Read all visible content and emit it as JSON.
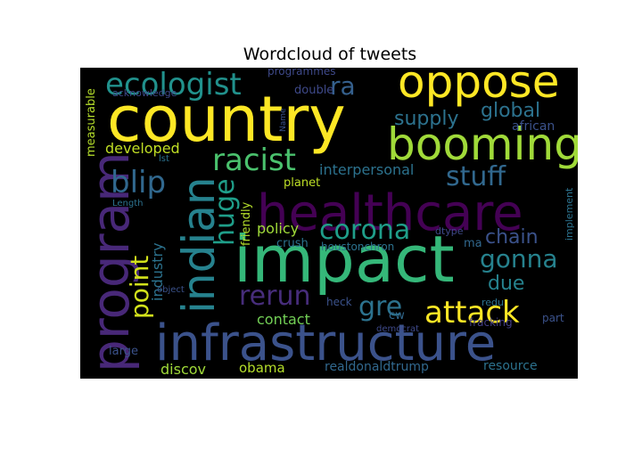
{
  "chart_data": {
    "type": "wordcloud",
    "title": "Wordcloud of tweets",
    "background": "#000000",
    "colormap": "viridis",
    "words": [
      {
        "text": "country",
        "color": "#fde725"
      },
      {
        "text": "impact",
        "color": "#35b779"
      },
      {
        "text": "infrastructure",
        "color": "#3b528b"
      },
      {
        "text": "healthcare",
        "color": "#440154"
      },
      {
        "text": "oppose",
        "color": "#fde725"
      },
      {
        "text": "booming",
        "color": "#a0da39"
      },
      {
        "text": "program",
        "color": "#482878"
      },
      {
        "text": "indian",
        "color": "#26828e"
      },
      {
        "text": "ecologist",
        "color": "#21918c"
      },
      {
        "text": "racist",
        "color": "#4ac16d"
      },
      {
        "text": "attack",
        "color": "#fde725"
      },
      {
        "text": "blip",
        "color": "#31688e"
      },
      {
        "text": "huge",
        "color": "#1f9e89"
      },
      {
        "text": "corona",
        "color": "#1f9e89"
      },
      {
        "text": "stuff",
        "color": "#31688e"
      },
      {
        "text": "rerun",
        "color": "#472d7b"
      },
      {
        "text": "gonna",
        "color": "#26828e"
      },
      {
        "text": "point",
        "color": "#d2e21b"
      },
      {
        "text": "gre",
        "color": "#2c728e"
      },
      {
        "text": "ra",
        "color": "#35608d"
      },
      {
        "text": "supply",
        "color": "#2c728e"
      },
      {
        "text": "global",
        "color": "#2c728e"
      },
      {
        "text": "chain",
        "color": "#3b528b"
      },
      {
        "text": "due",
        "color": "#26828e"
      },
      {
        "text": "interpersonal",
        "color": "#2c728e"
      },
      {
        "text": "developed",
        "color": "#c0df25"
      },
      {
        "text": "industry",
        "color": "#2c728e"
      },
      {
        "text": "contact",
        "color": "#73d056"
      },
      {
        "text": "policy",
        "color": "#a0da39"
      },
      {
        "text": "discov",
        "color": "#a0da39"
      },
      {
        "text": "obama",
        "color": "#b5de2b"
      },
      {
        "text": "realdonaldtrump",
        "color": "#31688e"
      },
      {
        "text": "resource",
        "color": "#2c728e"
      },
      {
        "text": "african",
        "color": "#3b528b"
      },
      {
        "text": "double",
        "color": "#3e4989"
      },
      {
        "text": "programmes",
        "color": "#3e4989"
      },
      {
        "text": "acknowledge",
        "color": "#3e4989"
      },
      {
        "text": "measurable",
        "color": "#b5de2b"
      },
      {
        "text": "friendly",
        "color": "#b5de2b"
      },
      {
        "text": "planet",
        "color": "#bddf26"
      },
      {
        "text": "crush",
        "color": "#2c728e"
      },
      {
        "text": "houstonchron",
        "color": "#2c728e"
      },
      {
        "text": "heck",
        "color": "#3b528b"
      },
      {
        "text": "cw",
        "color": "#31688e"
      },
      {
        "text": "democrat",
        "color": "#3e4989"
      },
      {
        "text": "fracking",
        "color": "#433e85"
      },
      {
        "text": "large",
        "color": "#3b528b"
      },
      {
        "text": "redu",
        "color": "#2c728e"
      },
      {
        "text": "part",
        "color": "#3b528b"
      },
      {
        "text": "implement",
        "color": "#2c728e"
      },
      {
        "text": "dtype",
        "color": "#3e4989"
      },
      {
        "text": "ma",
        "color": "#31688e"
      },
      {
        "text": "object",
        "color": "#3b528b"
      },
      {
        "text": "Length",
        "color": "#2c728e"
      },
      {
        "text": "lst",
        "color": "#2c728e"
      },
      {
        "text": "Name",
        "color": "#3b528b"
      }
    ]
  }
}
